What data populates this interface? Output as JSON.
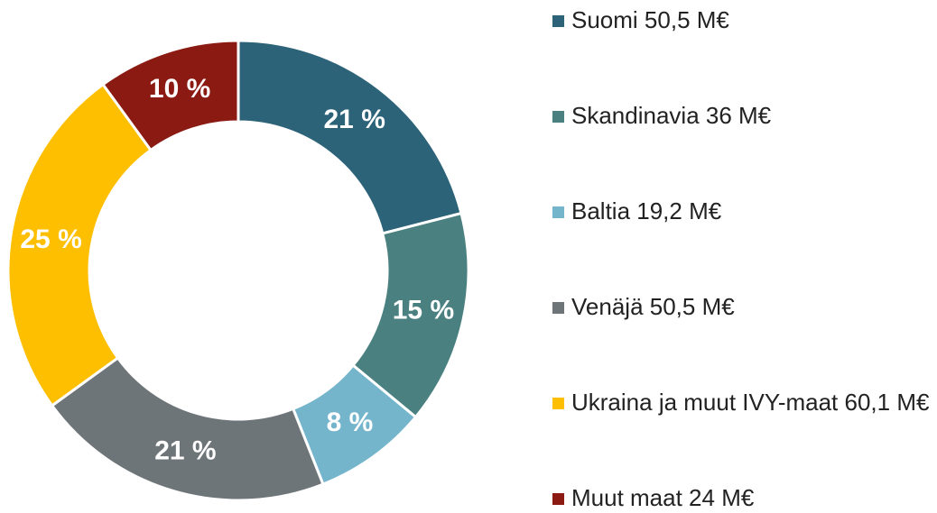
{
  "chart_data": {
    "type": "donut",
    "categories": [
      "Suomi 50,5 M€",
      "Skandinavia 36 M€",
      "Baltia 19,2 M€",
      "Venäjä 50,5 M€",
      "Ukraina ja muut IVY-maat 60,1 M€",
      "Muut maat 24 M€"
    ],
    "values": [
      21,
      15,
      8,
      21,
      25,
      10
    ],
    "value_labels": [
      "21 %",
      "15 %",
      "8 %",
      "21 %",
      "25 %",
      "10 %"
    ],
    "colors": [
      "#2c6378",
      "#4a8080",
      "#74b5cc",
      "#6e7579",
      "#fdbf00",
      "#8b1a12"
    ],
    "legend": "right"
  }
}
